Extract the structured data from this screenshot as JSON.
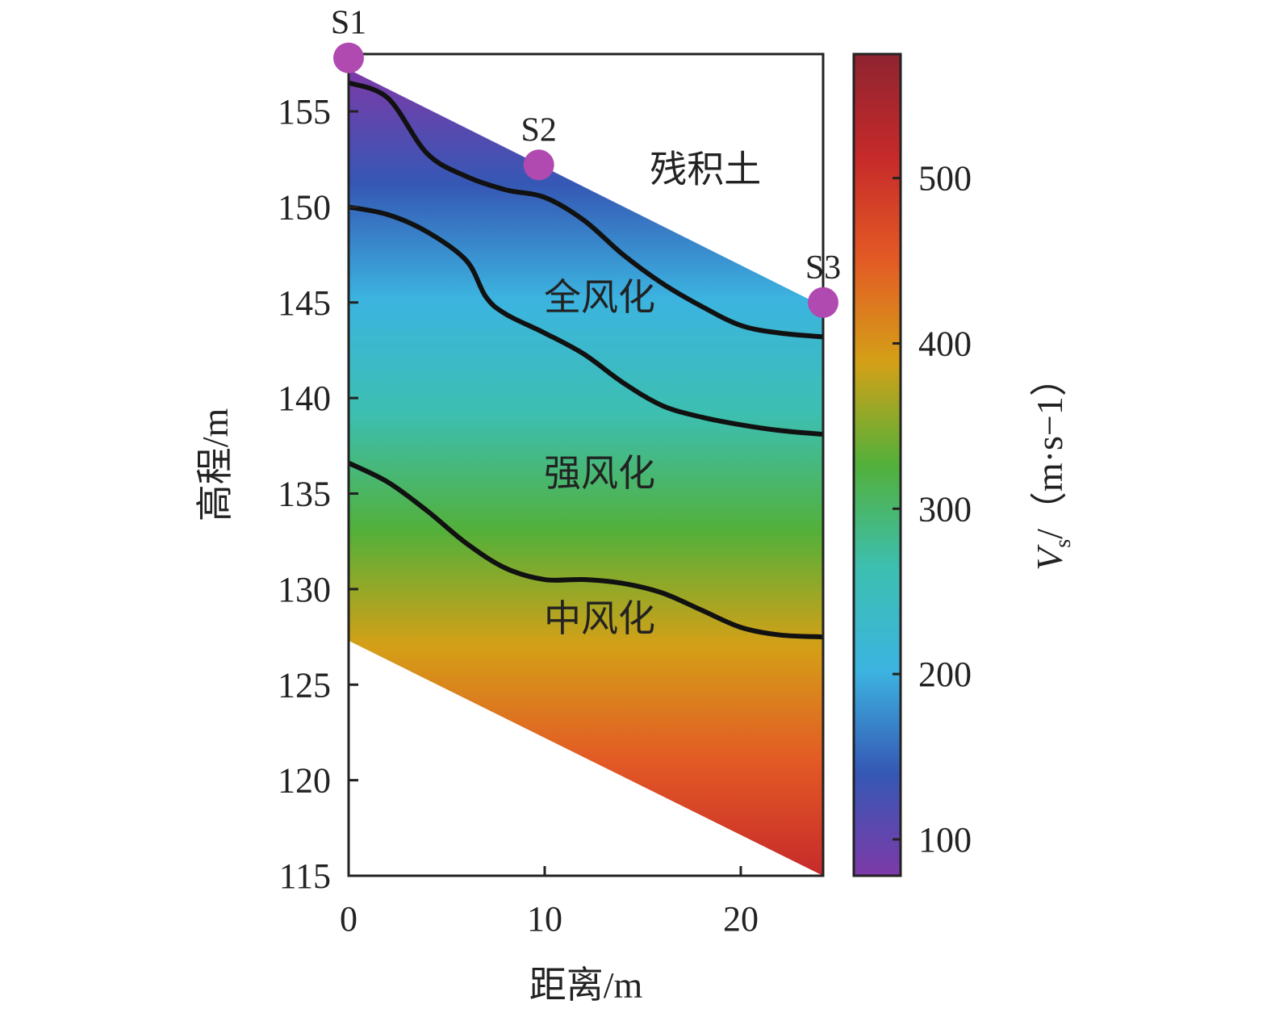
{
  "chart_data": {
    "type": "heatmap",
    "title": "",
    "xlabel": "距离/m",
    "ylabel": "高程/m",
    "xlim": [
      0,
      24.2
    ],
    "ylim": [
      115,
      158
    ],
    "x_ticks": [
      0,
      10,
      20
    ],
    "y_ticks": [
      115,
      120,
      125,
      130,
      135,
      140,
      145,
      150,
      155
    ],
    "colorbar": {
      "label_main": "V",
      "label_sub": "s",
      "label_unit": "/（m·s−1）",
      "range": [
        78,
        575
      ],
      "ticks": [
        100,
        200,
        300,
        400,
        500
      ],
      "colors": [
        "#7d3aa8",
        "#3558b5",
        "#3cb4e0",
        "#3dbfb0",
        "#52b03a",
        "#d4a017",
        "#e35a25",
        "#c62a2a",
        "#8e2430"
      ]
    },
    "stations": [
      {
        "name": "S1",
        "x": 0,
        "y": 157.8
      },
      {
        "name": "S2",
        "x": 9.7,
        "y": 152.2
      },
      {
        "name": "S3",
        "x": 24.2,
        "y": 145
      }
    ],
    "zones": [
      {
        "name": "残积土",
        "x": 18.2,
        "y": 151.3
      },
      {
        "name": "全风化",
        "x": 12.8,
        "y": 144.6
      },
      {
        "name": "强风化",
        "x": 12.8,
        "y": 135.4
      },
      {
        "name": "中风化",
        "x": 12.8,
        "y": 127.8
      }
    ],
    "boundaries": [
      {
        "name": "残积土/全风化",
        "x": [
          0,
          2,
          4,
          6,
          8,
          10,
          12,
          14,
          16,
          18,
          20,
          22,
          24.2
        ],
        "y": [
          156.5,
          155.7,
          152.8,
          151.6,
          150.9,
          150.5,
          149.3,
          147.5,
          146,
          144.8,
          143.8,
          143.4,
          143.2
        ]
      },
      {
        "name": "全风化/强风化",
        "x": [
          0,
          2,
          4,
          6,
          7,
          8,
          10,
          12,
          14,
          16,
          18,
          20,
          22,
          24.2
        ],
        "y": [
          150,
          149.6,
          148.7,
          147.2,
          145.3,
          144.4,
          143.4,
          142.3,
          140.8,
          139.6,
          139,
          138.6,
          138.3,
          138.1
        ]
      },
      {
        "name": "强风化/中风化",
        "x": [
          0,
          2,
          4,
          6,
          8,
          10,
          12,
          14,
          16,
          18,
          20,
          22,
          24.2
        ],
        "y": [
          136.6,
          135.6,
          134.1,
          132.4,
          131.1,
          130.5,
          130.5,
          130.3,
          129.8,
          128.9,
          128,
          127.6,
          127.5
        ]
      }
    ],
    "layer_velocities": [
      {
        "zone": "残积土",
        "vs_range": [
          85,
          170
        ]
      },
      {
        "zone": "全风化",
        "vs_range": [
          180,
          250
        ]
      },
      {
        "zone": "强风化",
        "vs_range": [
          250,
          360
        ]
      },
      {
        "zone": "中风化",
        "vs_range": [
          390,
          575
        ]
      }
    ],
    "data_extent": {
      "top": [
        [
          0,
          157.2
        ],
        [
          24.2,
          144.8
        ]
      ],
      "bottom": [
        [
          0,
          127.3
        ],
        [
          24.2,
          115
        ]
      ]
    }
  }
}
